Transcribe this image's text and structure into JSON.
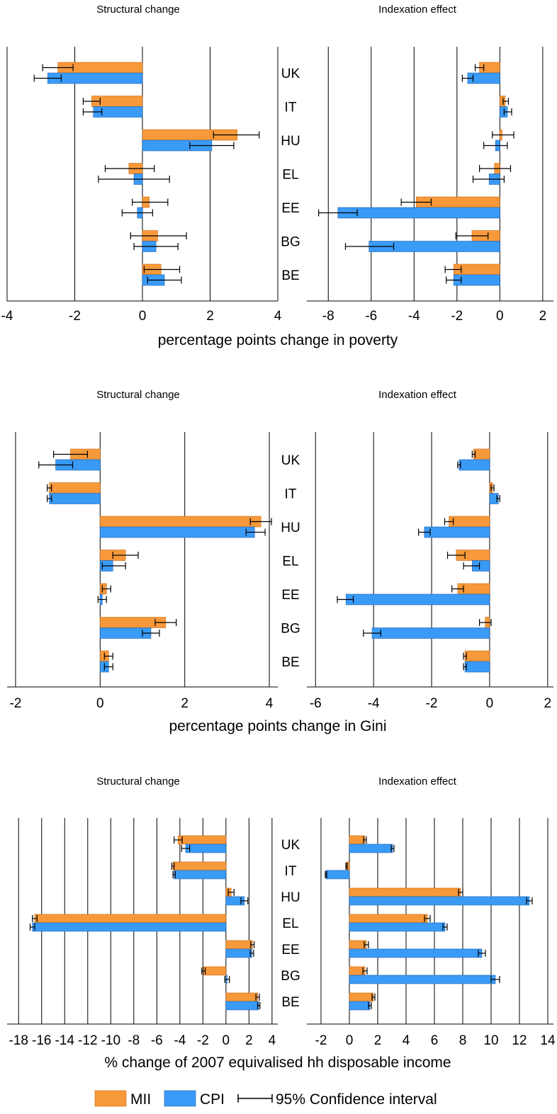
{
  "colors": {
    "mii": "#F7993A",
    "cpi": "#3A9BF7",
    "mii_edge": "#C86A14",
    "cpi_edge": "#1A5FB0",
    "grid": "#000000",
    "ci": "#000000"
  },
  "legend": {
    "mii": "MII",
    "cpi": "CPI",
    "ci": "95% Confidence interval"
  },
  "chart_data": [
    {
      "type": "bar",
      "orientation": "horizontal",
      "xlabel": "percentage points change in poverty",
      "categories": [
        "UK",
        "IT",
        "HU",
        "EL",
        "EE",
        "BG",
        "BE"
      ],
      "panels": [
        {
          "title": "Structural change",
          "xlim": [
            -4,
            4
          ],
          "xticks": [
            "-4",
            "-2",
            "0",
            "2",
            "4"
          ],
          "tick_values": [
            -4,
            -2,
            0,
            2,
            4
          ],
          "grid": true,
          "series": [
            {
              "name": "MII",
              "values": [
                -2.5,
                -1.5,
                2.8,
                -0.4,
                0.2,
                0.45,
                0.55
              ],
              "ci": [
                [
                  -2.95,
                  -2.05
                ],
                [
                  -1.75,
                  -1.25
                ],
                [
                  2.1,
                  3.45
                ],
                [
                  -1.1,
                  0.35
                ],
                [
                  -0.3,
                  0.75
                ],
                [
                  -0.35,
                  1.3
                ],
                [
                  0.05,
                  1.1
                ]
              ]
            },
            {
              "name": "CPI",
              "values": [
                -2.8,
                -1.45,
                2.05,
                -0.25,
                -0.15,
                0.4,
                0.65
              ],
              "ci": [
                [
                  -3.2,
                  -2.4
                ],
                [
                  -1.75,
                  -1.2
                ],
                [
                  1.4,
                  2.7
                ],
                [
                  -1.3,
                  0.8
                ],
                [
                  -0.6,
                  0.3
                ],
                [
                  -0.25,
                  1.05
                ],
                [
                  0.15,
                  1.15
                ]
              ]
            }
          ]
        },
        {
          "title": "Indexation effect",
          "xlim": [
            -9,
            2.5
          ],
          "xticks": [
            "-8",
            "-6",
            "-4",
            "-2",
            "0",
            "2"
          ],
          "tick_values": [
            -8,
            -6,
            -4,
            -2,
            0,
            2
          ],
          "grid": true,
          "series": [
            {
              "name": "MII",
              "values": [
                -0.95,
                0.25,
                0.1,
                -0.25,
                -3.9,
                -1.3,
                -2.15
              ],
              "ci": [
                [
                  -1.15,
                  -0.75
                ],
                [
                  0.15,
                  0.4
                ],
                [
                  -0.35,
                  0.65
                ],
                [
                  -0.95,
                  0.5
                ],
                [
                  -4.6,
                  -3.2
                ],
                [
                  -2.05,
                  -0.55
                ],
                [
                  -2.55,
                  -1.8
                ]
              ]
            },
            {
              "name": "CPI",
              "values": [
                -1.5,
                0.35,
                -0.2,
                -0.5,
                -7.55,
                -6.1,
                -2.15
              ],
              "ci": [
                [
                  -1.75,
                  -1.25
                ],
                [
                  0.2,
                  0.55
                ],
                [
                  -0.75,
                  0.35
                ],
                [
                  -1.25,
                  0.2
                ],
                [
                  -8.45,
                  -6.65
                ],
                [
                  -7.2,
                  -4.95
                ],
                [
                  -2.5,
                  -1.8
                ]
              ]
            }
          ]
        }
      ]
    },
    {
      "type": "bar",
      "orientation": "horizontal",
      "xlabel": "percentage points change in Gini",
      "categories": [
        "UK",
        "IT",
        "HU",
        "EL",
        "EE",
        "BG",
        "BE"
      ],
      "panels": [
        {
          "title": "Structural change",
          "xlim": [
            -2.2,
            4.2
          ],
          "xticks": [
            "-2",
            "0",
            "2",
            "4"
          ],
          "tick_values": [
            -2,
            0,
            2,
            4
          ],
          "grid": true,
          "series": [
            {
              "name": "MII",
              "values": [
                -0.7,
                -1.2,
                3.8,
                0.6,
                0.15,
                1.55,
                0.2
              ],
              "ci": [
                [
                  -1.1,
                  -0.3
                ],
                [
                  -1.25,
                  -1.15
                ],
                [
                  3.55,
                  4.05
                ],
                [
                  0.3,
                  0.9
                ],
                [
                  0.05,
                  0.25
                ],
                [
                  1.3,
                  1.8
                ],
                [
                  0.1,
                  0.3
                ]
              ]
            },
            {
              "name": "CPI",
              "values": [
                -1.05,
                -1.2,
                3.65,
                0.3,
                0.05,
                1.2,
                0.2
              ],
              "ci": [
                [
                  -1.45,
                  -0.65
                ],
                [
                  -1.25,
                  -1.15
                ],
                [
                  3.45,
                  3.9
                ],
                [
                  0.05,
                  0.6
                ],
                [
                  -0.05,
                  0.15
                ],
                [
                  1.0,
                  1.4
                ],
                [
                  0.1,
                  0.3
                ]
              ]
            }
          ]
        },
        {
          "title": "Indexation effect",
          "xlim": [
            -6.3,
            2.2
          ],
          "xticks": [
            "-6",
            "-4",
            "-2",
            "0",
            "2"
          ],
          "tick_values": [
            -6,
            -4,
            -2,
            0,
            2
          ],
          "grid": true,
          "series": [
            {
              "name": "MII",
              "values": [
                -0.55,
                0.1,
                -1.4,
                -1.15,
                -1.1,
                -0.15,
                -0.85
              ],
              "ci": [
                [
                  -0.6,
                  -0.5
                ],
                [
                  0.05,
                  0.15
                ],
                [
                  -1.55,
                  -1.25
                ],
                [
                  -1.45,
                  -0.85
                ],
                [
                  -1.3,
                  -0.9
                ],
                [
                  -0.35,
                  0.05
                ],
                [
                  -0.9,
                  -0.8
                ]
              ]
            },
            {
              "name": "CPI",
              "values": [
                -1.05,
                0.3,
                -2.25,
                -0.6,
                -4.95,
                -4.05,
                -0.85
              ],
              "ci": [
                [
                  -1.1,
                  -1.0
                ],
                [
                  0.25,
                  0.35
                ],
                [
                  -2.45,
                  -2.05
                ],
                [
                  -0.9,
                  -0.35
                ],
                [
                  -5.25,
                  -4.7
                ],
                [
                  -4.35,
                  -3.75
                ],
                [
                  -0.9,
                  -0.8
                ]
              ]
            }
          ]
        }
      ]
    },
    {
      "type": "bar",
      "orientation": "horizontal",
      "xlabel": "% change of 2007 equivalised hh disposable income",
      "categories": [
        "UK",
        "IT",
        "HU",
        "EL",
        "EE",
        "BG",
        "BE"
      ],
      "panels": [
        {
          "title": "Structural change",
          "xlim": [
            -19,
            4.5
          ],
          "xticks": [
            "-18",
            "-16",
            "-14",
            "-12",
            "-10",
            "-8",
            "-6",
            "-4",
            "-2",
            "0",
            "2",
            "4"
          ],
          "tick_values": [
            -18,
            -16,
            -14,
            -12,
            -10,
            -8,
            -6,
            -4,
            -2,
            0,
            2,
            4
          ],
          "grid": true,
          "series": [
            {
              "name": "MII",
              "values": [
                -4.15,
                -4.6,
                0.45,
                -16.6,
                2.3,
                -1.95,
                2.75
              ],
              "ci": [
                [
                  -4.5,
                  -3.8
                ],
                [
                  -4.7,
                  -4.5
                ],
                [
                  0.2,
                  0.7
                ],
                [
                  -16.8,
                  -16.4
                ],
                [
                  2.15,
                  2.45
                ],
                [
                  -2.1,
                  -1.8
                ],
                [
                  2.6,
                  2.9
                ]
              ]
            },
            {
              "name": "CPI",
              "values": [
                -3.5,
                -4.5,
                1.6,
                -16.8,
                2.25,
                0.1,
                2.85
              ],
              "ci": [
                [
                  -3.85,
                  -3.15
                ],
                [
                  -4.6,
                  -4.4
                ],
                [
                  1.3,
                  1.9
                ],
                [
                  -17.0,
                  -16.6
                ],
                [
                  2.1,
                  2.4
                ],
                [
                  -0.1,
                  0.3
                ],
                [
                  2.75,
                  2.95
                ]
              ]
            }
          ]
        },
        {
          "title": "Indexation effect",
          "xlim": [
            -3,
            14.4
          ],
          "xticks": [
            "-2",
            "0",
            "2",
            "4",
            "6",
            "8",
            "10",
            "12",
            "14"
          ],
          "tick_values": [
            -2,
            0,
            2,
            4,
            6,
            8,
            10,
            12,
            14
          ],
          "grid": true,
          "series": [
            {
              "name": "MII",
              "values": [
                1.1,
                -0.2,
                7.85,
                5.5,
                1.2,
                1.1,
                1.7
              ],
              "ci": [
                [
                  1.0,
                  1.2
                ],
                [
                  -0.25,
                  -0.15
                ],
                [
                  7.7,
                  8.0
                ],
                [
                  5.3,
                  5.7
                ],
                [
                  1.05,
                  1.35
                ],
                [
                  0.95,
                  1.25
                ],
                [
                  1.6,
                  1.8
                ]
              ]
            },
            {
              "name": "CPI",
              "values": [
                3.05,
                -1.65,
                12.7,
                6.75,
                9.35,
                10.3,
                1.45
              ],
              "ci": [
                [
                  2.95,
                  3.15
                ],
                [
                  -1.7,
                  -1.6
                ],
                [
                  12.5,
                  12.9
                ],
                [
                  6.6,
                  6.9
                ],
                [
                  9.1,
                  9.6
                ],
                [
                  10.0,
                  10.6
                ],
                [
                  1.35,
                  1.55
                ]
              ]
            }
          ]
        }
      ]
    }
  ]
}
